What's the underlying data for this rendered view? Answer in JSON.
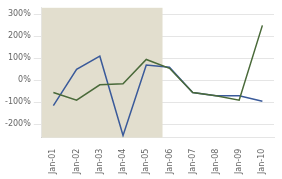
{
  "chart_data": {
    "type": "line",
    "categories": [
      "Jan-01",
      "Jan-02",
      "Jan-03",
      "Jan-04",
      "Jan-05",
      "Jan-06",
      "Jan-07",
      "Jan-08",
      "Jan-09",
      "Jan-10"
    ],
    "series": [
      {
        "color": "#4a6a3a",
        "values": [
          -55,
          -90,
          -20,
          -15,
          95,
          55,
          -55,
          -70,
          -90,
          250
        ]
      },
      {
        "color": "#3a5a9a",
        "values": [
          -115,
          50,
          110,
          -250,
          70,
          60,
          -55,
          -70,
          -70,
          -95
        ]
      }
    ],
    "shaded_span": {
      "xmin": -0.5,
      "xmax": 4.7,
      "color": "#e2dece"
    },
    "ylim": [
      -260,
      330
    ],
    "yticks": [
      {
        "value": -200,
        "label": "-200%"
      },
      {
        "value": -100,
        "label": "-100%"
      },
      {
        "value": 0,
        "label": "0%"
      },
      {
        "value": 100,
        "label": "100%"
      },
      {
        "value": 200,
        "label": "200%"
      },
      {
        "value": 300,
        "label": "300%"
      }
    ],
    "grid": true
  }
}
